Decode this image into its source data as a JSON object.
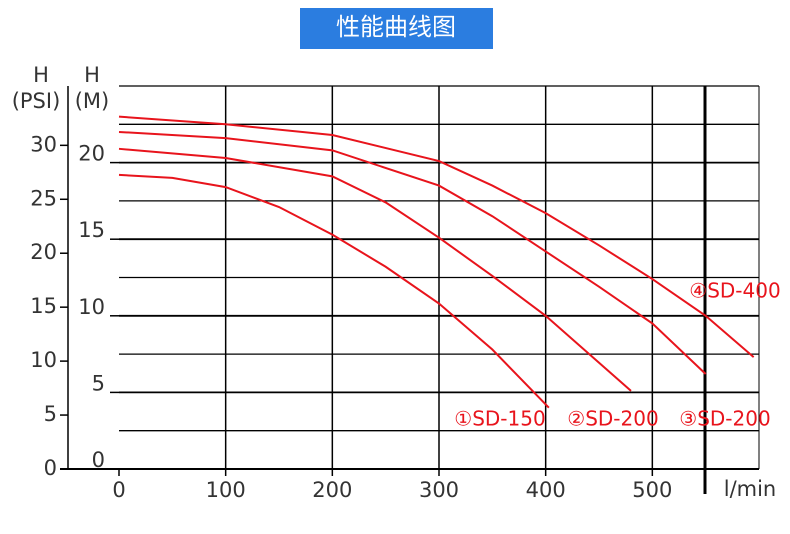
{
  "chart_data": {
    "type": "line",
    "title": "性能曲线图",
    "y_label_unit": "H",
    "y_label": "(M)",
    "y2_label_unit": "H",
    "y2_label": "(PSI)",
    "x_label": "l/min",
    "xlim": [
      0,
      600
    ],
    "xticks": [
      0,
      100,
      200,
      300,
      400,
      500
    ],
    "ylim": [
      0,
      25
    ],
    "yticks": [
      0,
      5,
      10,
      15,
      20
    ],
    "y_minor_grid": [
      2.5,
      7.5,
      12.5,
      17.5,
      22.5,
      25
    ],
    "y2lim": [
      0,
      35.5
    ],
    "y2ticks": [
      0,
      5,
      10,
      15,
      20,
      25,
      30
    ],
    "grid": true,
    "series": [
      {
        "name": "①SD-150",
        "color": "#e8141c",
        "x": [
          0,
          50,
          100,
          150,
          200,
          250,
          300,
          350,
          403
        ],
        "values": [
          19.2,
          19.0,
          18.4,
          17.1,
          15.3,
          13.2,
          10.8,
          7.8,
          4.0
        ]
      },
      {
        "name": "②SD-200",
        "color": "#e8141c",
        "x": [
          0,
          100,
          200,
          250,
          300,
          350,
          400,
          480
        ],
        "values": [
          20.9,
          20.3,
          19.1,
          17.4,
          15.1,
          12.6,
          10.0,
          5.1
        ]
      },
      {
        "name": "③SD-200",
        "color": "#e8141c",
        "x": [
          0,
          100,
          200,
          300,
          350,
          400,
          450,
          500,
          550
        ],
        "values": [
          22.0,
          21.6,
          20.8,
          18.5,
          16.5,
          14.2,
          11.9,
          9.5,
          6.2
        ]
      },
      {
        "name": "④SD-400",
        "color": "#e8141c",
        "x": [
          0,
          100,
          200,
          300,
          350,
          400,
          450,
          500,
          550,
          595
        ],
        "values": [
          23.0,
          22.5,
          21.8,
          20.1,
          18.5,
          16.7,
          14.6,
          12.4,
          10.0,
          7.3
        ]
      }
    ]
  }
}
